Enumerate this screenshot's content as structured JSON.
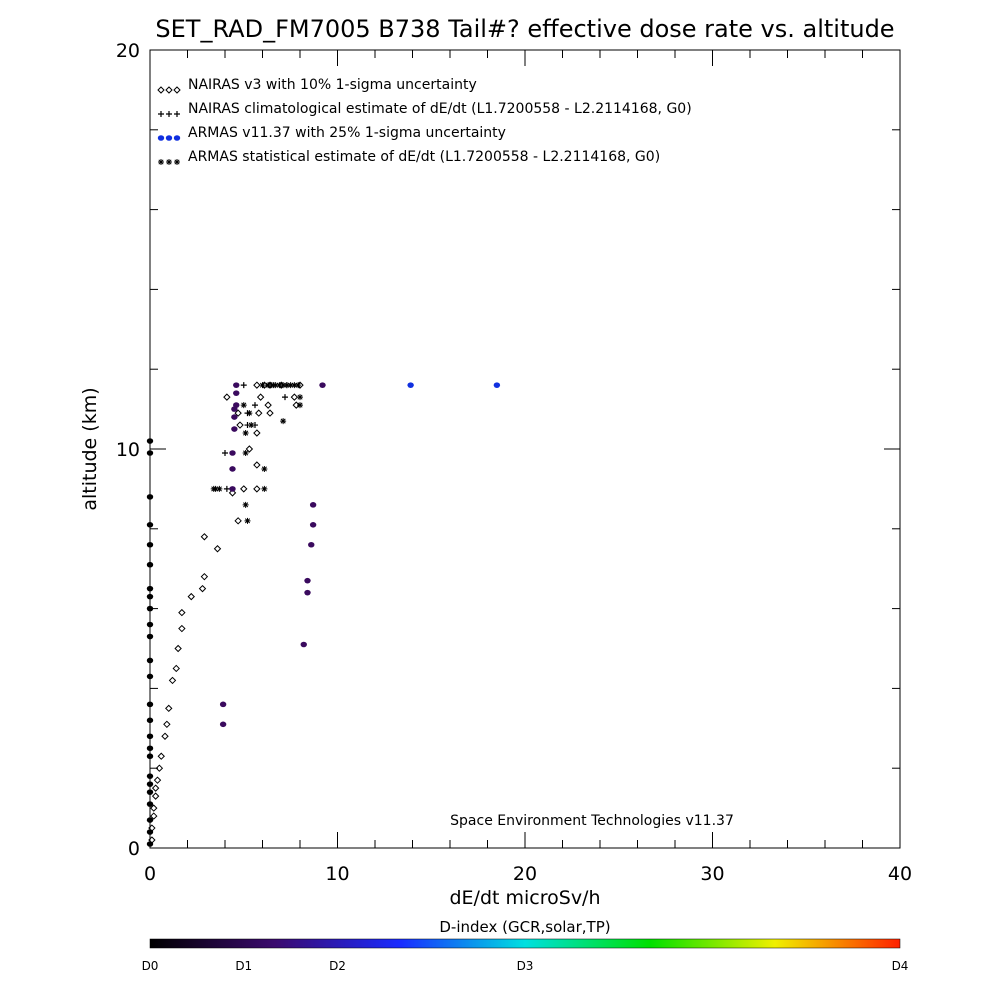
{
  "chart_data": {
    "type": "scatter",
    "title": "SET_RAD_FM7005  B738 Tail#? effective dose rate vs. altitude",
    "xlabel": "dE/dt microSv/h",
    "ylabel": "altitude (km)",
    "xlim": [
      0,
      40
    ],
    "ylim": [
      0,
      20
    ],
    "x_ticks": [
      "0",
      "10",
      "20",
      "30",
      "40"
    ],
    "y_ticks": [
      "0",
      "10",
      "20"
    ],
    "note": "Space Environment Technologies v11.37",
    "legend": [
      {
        "label": "NAIRAS v3 with 10% 1-sigma uncertainty",
        "marker": "diamond",
        "color": "#000000"
      },
      {
        "label": "NAIRAS climatological estimate of dE/dt (L1.7200558 - L2.2114168, G0)",
        "marker": "plus",
        "color": "#000000"
      },
      {
        "label": "ARMAS v11.37 with 25% 1-sigma uncertainty",
        "marker": "dot",
        "color": "#1030e0"
      },
      {
        "label": "ARMAS statistical estimate of dE/dt (L1.7200558 - L2.2114168, G0)",
        "marker": "asterisk",
        "color": "#000000"
      }
    ],
    "series": [
      {
        "name": "NAIRAS v3 with 10% 1-sigma uncertainty",
        "marker": "diamond",
        "points": [
          [
            0.1,
            0.2
          ],
          [
            0.1,
            0.5
          ],
          [
            0.2,
            0.8
          ],
          [
            0.2,
            1.0
          ],
          [
            0.3,
            1.3
          ],
          [
            0.3,
            1.5
          ],
          [
            0.4,
            1.7
          ],
          [
            0.5,
            2.0
          ],
          [
            0.6,
            2.3
          ],
          [
            0.8,
            2.8
          ],
          [
            0.9,
            3.1
          ],
          [
            1.0,
            3.5
          ],
          [
            1.2,
            4.2
          ],
          [
            1.4,
            4.5
          ],
          [
            1.5,
            5.0
          ],
          [
            1.7,
            5.5
          ],
          [
            1.7,
            5.9
          ],
          [
            2.2,
            6.3
          ],
          [
            2.8,
            6.5
          ],
          [
            2.9,
            6.8
          ],
          [
            3.6,
            7.5
          ],
          [
            2.9,
            7.8
          ],
          [
            4.7,
            8.2
          ],
          [
            4.4,
            8.9
          ],
          [
            5.0,
            9.0
          ],
          [
            5.7,
            9.0
          ],
          [
            5.7,
            9.6
          ],
          [
            5.3,
            10.0
          ],
          [
            5.7,
            10.4
          ],
          [
            4.8,
            10.6
          ],
          [
            4.7,
            10.9
          ],
          [
            5.8,
            10.9
          ],
          [
            6.4,
            10.9
          ],
          [
            6.3,
            11.1
          ],
          [
            7.8,
            11.1
          ],
          [
            4.1,
            11.3
          ],
          [
            5.9,
            11.3
          ],
          [
            7.7,
            11.3
          ],
          [
            5.7,
            11.6
          ],
          [
            6.1,
            11.6
          ],
          [
            6.4,
            11.6
          ],
          [
            7.0,
            11.6
          ],
          [
            8.0,
            11.6
          ]
        ]
      },
      {
        "name": "NAIRAS climatological estimate of dE/dt (L1.7200558 - L2.2114168, G0)",
        "marker": "plus",
        "points": [
          [
            4.1,
            9.0
          ],
          [
            4.0,
            9.9
          ],
          [
            5.2,
            10.6
          ],
          [
            5.6,
            10.6
          ],
          [
            5.2,
            10.9
          ],
          [
            5.6,
            11.1
          ],
          [
            7.2,
            11.3
          ],
          [
            5.0,
            11.6
          ],
          [
            6.6,
            11.6
          ],
          [
            7.3,
            11.6
          ]
        ]
      },
      {
        "name": "ARMAS v11.37 with 25% 1-sigma uncertainty",
        "marker": "dot",
        "points": [
          [
            0.0,
            0.1
          ],
          [
            0.0,
            0.4
          ],
          [
            0.0,
            0.7
          ],
          [
            0.0,
            1.1
          ],
          [
            0.0,
            1.4
          ],
          [
            0.0,
            1.6
          ],
          [
            0.0,
            1.8
          ],
          [
            0.0,
            2.3
          ],
          [
            0.0,
            2.5
          ],
          [
            0.0,
            2.8
          ],
          [
            0.0,
            3.2
          ],
          [
            0.0,
            3.6
          ],
          [
            0.0,
            4.3
          ],
          [
            0.0,
            4.7
          ],
          [
            0.0,
            5.3
          ],
          [
            0.0,
            5.6
          ],
          [
            0.0,
            6.0
          ],
          [
            0.0,
            6.3
          ],
          [
            0.0,
            6.5
          ],
          [
            0.0,
            7.1
          ],
          [
            0.0,
            7.6
          ],
          [
            0.0,
            8.1
          ],
          [
            0.0,
            8.8
          ],
          [
            0.0,
            9.9
          ],
          [
            0.0,
            10.2
          ],
          [
            3.9,
            3.1
          ],
          [
            3.9,
            3.6
          ],
          [
            8.2,
            5.1
          ],
          [
            8.4,
            6.4
          ],
          [
            8.4,
            6.7
          ],
          [
            8.6,
            7.6
          ],
          [
            8.7,
            8.1
          ],
          [
            8.7,
            8.6
          ],
          [
            4.4,
            9.0
          ],
          [
            4.4,
            9.5
          ],
          [
            4.4,
            9.9
          ],
          [
            4.5,
            10.5
          ],
          [
            4.5,
            10.8
          ],
          [
            4.5,
            11.0
          ],
          [
            4.6,
            11.1
          ],
          [
            4.6,
            11.4
          ],
          [
            4.6,
            11.6
          ],
          [
            9.2,
            11.6
          ],
          [
            13.9,
            11.6
          ],
          [
            18.5,
            11.6
          ]
        ]
      },
      {
        "name": "ARMAS statistical estimate of dE/dt (L1.7200558 - L2.2114168, G0)",
        "marker": "asterisk",
        "points": [
          [
            3.4,
            9.0
          ],
          [
            3.5,
            9.0
          ],
          [
            3.7,
            9.0
          ],
          [
            5.1,
            8.6
          ],
          [
            5.2,
            8.2
          ],
          [
            6.1,
            9.0
          ],
          [
            6.1,
            9.5
          ],
          [
            5.1,
            9.9
          ],
          [
            5.1,
            10.4
          ],
          [
            5.4,
            10.6
          ],
          [
            5.3,
            10.9
          ],
          [
            7.1,
            10.7
          ],
          [
            5.0,
            11.1
          ],
          [
            8.0,
            11.1
          ],
          [
            8.0,
            11.3
          ],
          [
            6.0,
            11.6
          ],
          [
            6.3,
            11.6
          ],
          [
            6.5,
            11.6
          ],
          [
            6.7,
            11.6
          ],
          [
            6.9,
            11.6
          ],
          [
            7.1,
            11.6
          ],
          [
            7.3,
            11.6
          ],
          [
            7.5,
            11.6
          ],
          [
            7.7,
            11.6
          ],
          [
            7.9,
            11.6
          ]
        ]
      }
    ],
    "colorbar": {
      "label": "D-index (GCR,solar,TP)",
      "ticks": [
        {
          "label": "D0",
          "pos": 0.0
        },
        {
          "label": "D1",
          "pos": 0.125
        },
        {
          "label": "D2",
          "pos": 0.25
        },
        {
          "label": "D3",
          "pos": 0.5
        },
        {
          "label": "D4",
          "pos": 1.0
        }
      ],
      "stops": [
        "#000000",
        "#3b0a6e",
        "#1a2bff",
        "#00e0e0",
        "#00e000",
        "#f0f000",
        "#ff2000"
      ]
    }
  }
}
